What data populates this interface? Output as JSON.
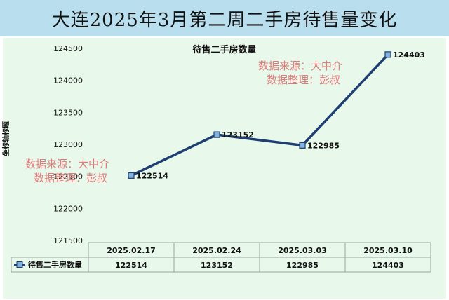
{
  "header": {
    "title": "大连2025年3月第二周二手房待售量变化"
  },
  "watermark": {
    "line1": "数据来源：大中介",
    "line2": "数据整理：彭叔"
  },
  "colors": {
    "line": "#1f3f73",
    "marker_fill": "#7fb1da",
    "band": "#b9dfef",
    "plot_bg": "#e8f8ea",
    "watermark": "#e07a7a"
  },
  "chart_data": {
    "type": "line",
    "title": "待售二手房数量",
    "ylabel": "坐标轴标题",
    "xlabel": "",
    "ylim": [
      121500,
      124500
    ],
    "yticks": [
      121500,
      122000,
      122500,
      123000,
      123500,
      124000,
      124500
    ],
    "categories": [
      "2025.02.17",
      "2025.02.24",
      "2025.03.03",
      "2025.03.10"
    ],
    "series": [
      {
        "name": "待售二手房数量",
        "values": [
          122514,
          123152,
          122985,
          124403
        ]
      }
    ],
    "legend": "bottom-left data table",
    "grid": false
  }
}
